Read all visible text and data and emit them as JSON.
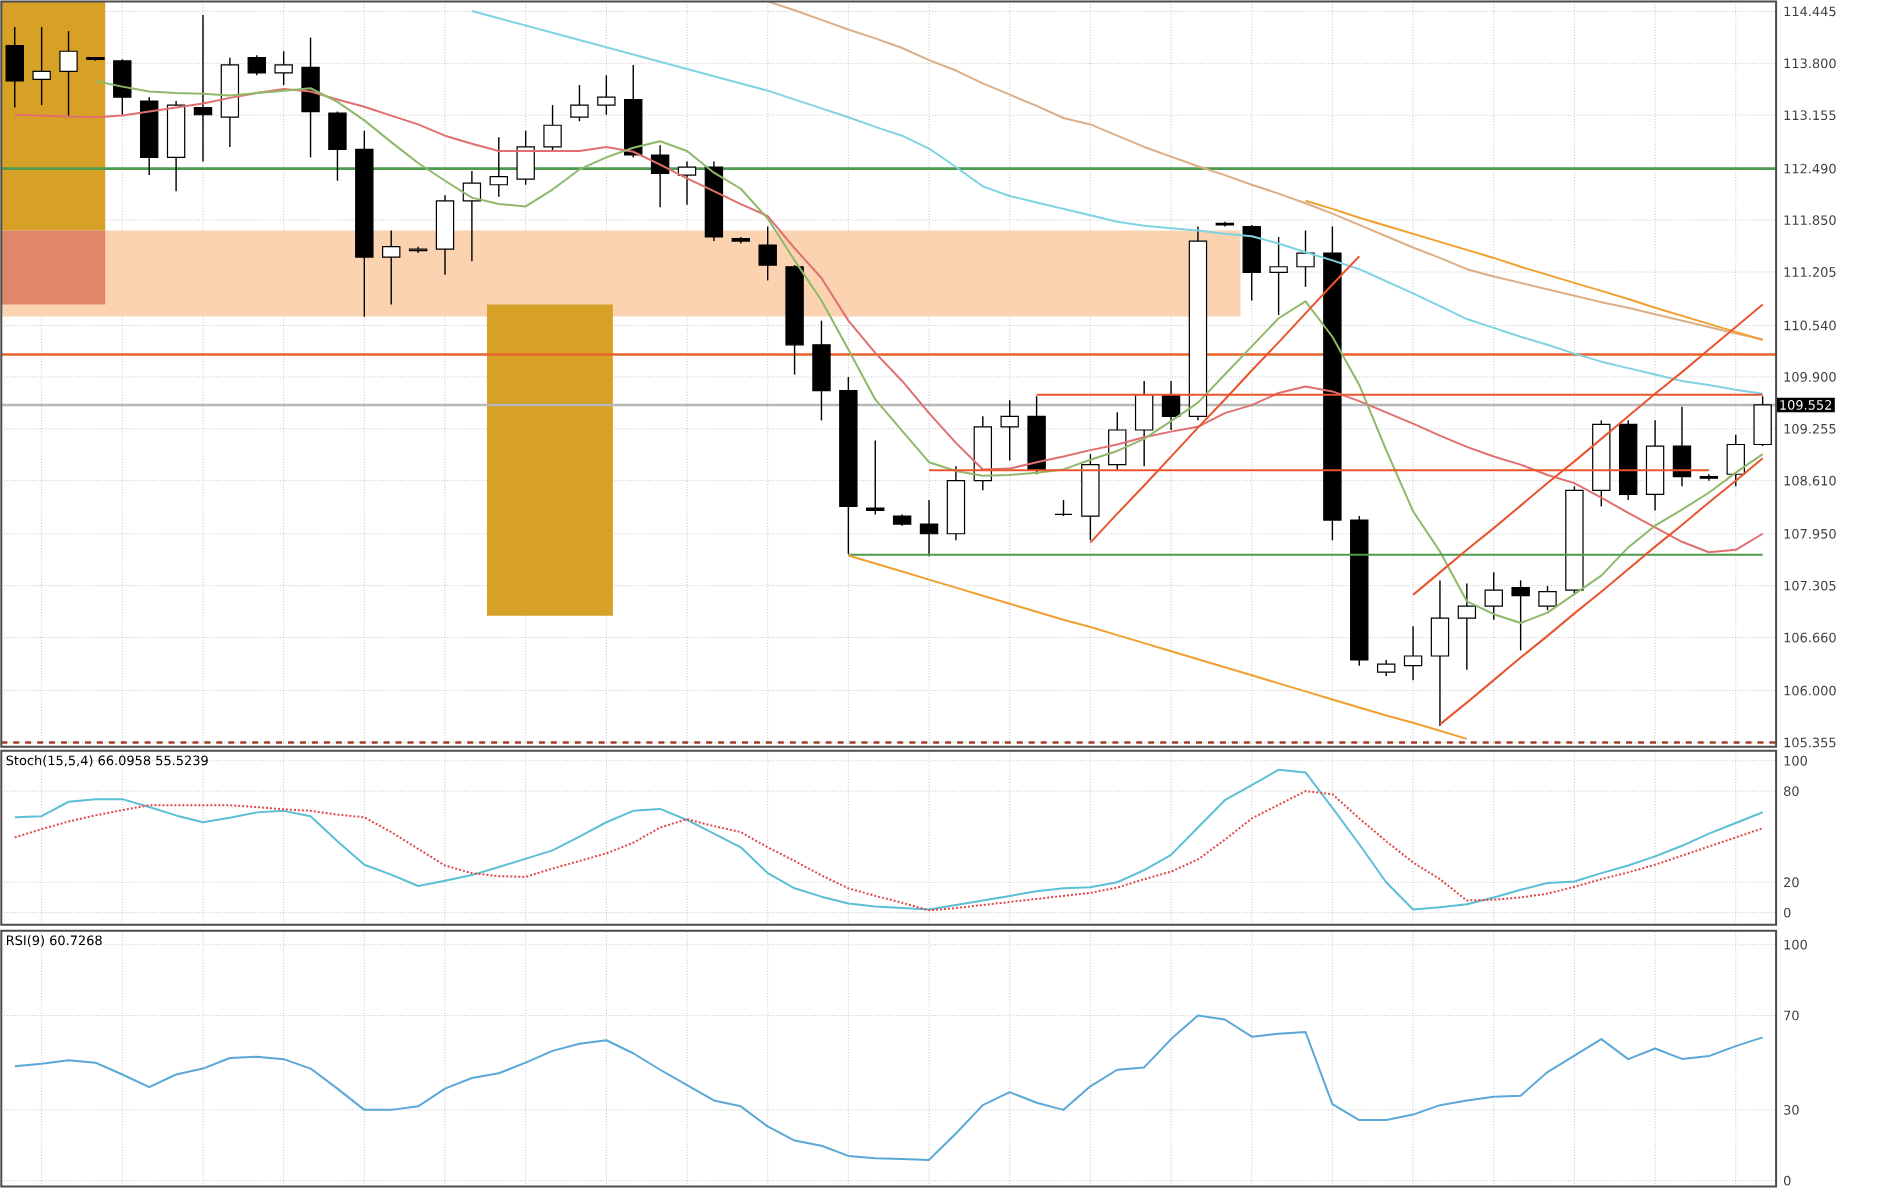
{
  "chart_data": [
    {
      "type": "candlestick",
      "categories": [
        null,
        null,
        null,
        null,
        null,
        null,
        null,
        null,
        null,
        null,
        null,
        null,
        null,
        null,
        null,
        null,
        null,
        null,
        null,
        null,
        null,
        null,
        null,
        null,
        null,
        null,
        null,
        null,
        null,
        null,
        null,
        null,
        null,
        null,
        null,
        null,
        null,
        null,
        null,
        null,
        null,
        null,
        null,
        null,
        null,
        null,
        null,
        null,
        null,
        null,
        null,
        null,
        null,
        null,
        null,
        null,
        null,
        null,
        null,
        null,
        null,
        null,
        null,
        null,
        null,
        null
      ],
      "ohlc": [
        [
          114.02,
          114.25,
          113.25,
          113.58
        ],
        [
          113.6,
          114.25,
          113.28,
          113.7
        ],
        [
          113.7,
          114.2,
          113.13,
          113.95
        ],
        [
          113.87,
          113.87,
          113.83,
          113.85
        ],
        [
          113.83,
          113.85,
          113.16,
          113.38
        ],
        [
          113.33,
          113.38,
          112.41,
          112.63
        ],
        [
          112.63,
          113.33,
          112.21,
          113.28
        ],
        [
          113.25,
          114.4,
          112.58,
          113.16
        ],
        [
          113.13,
          113.87,
          112.76,
          113.78
        ],
        [
          113.87,
          113.9,
          113.65,
          113.68
        ],
        [
          113.68,
          113.95,
          113.53,
          113.78
        ],
        [
          113.75,
          114.12,
          112.63,
          113.2
        ],
        [
          113.18,
          113.2,
          112.34,
          112.73
        ],
        [
          112.73,
          112.96,
          110.65,
          111.39
        ],
        [
          111.39,
          111.72,
          110.8,
          111.52
        ],
        [
          111.47,
          111.52,
          111.44,
          111.49
        ],
        [
          111.49,
          112.16,
          111.17,
          112.09
        ],
        [
          112.09,
          112.46,
          111.34,
          112.31
        ],
        [
          112.29,
          112.88,
          112.14,
          112.39
        ],
        [
          112.36,
          112.96,
          112.29,
          112.76
        ],
        [
          112.76,
          113.28,
          112.71,
          113.03
        ],
        [
          113.13,
          113.53,
          113.08,
          113.28
        ],
        [
          113.28,
          113.65,
          113.16,
          113.38
        ],
        [
          113.35,
          113.78,
          112.63,
          112.66
        ],
        [
          112.66,
          112.78,
          112.01,
          112.43
        ],
        [
          112.41,
          112.58,
          112.04,
          112.51
        ],
        [
          112.51,
          112.58,
          111.59,
          111.64
        ],
        [
          111.62,
          111.64,
          111.56,
          111.59
        ],
        [
          111.54,
          111.77,
          111.1,
          111.29
        ],
        [
          111.27,
          111.29,
          109.93,
          110.3
        ],
        [
          110.3,
          110.6,
          109.36,
          109.73
        ],
        [
          109.73,
          109.9,
          107.7,
          108.29
        ],
        [
          108.27,
          109.11,
          108.19,
          108.24
        ],
        [
          108.17,
          108.19,
          108.05,
          108.07
        ],
        [
          108.07,
          108.37,
          107.67,
          107.95
        ],
        [
          107.95,
          108.79,
          107.87,
          108.61
        ],
        [
          108.61,
          109.41,
          108.49,
          109.28
        ],
        [
          109.28,
          109.61,
          108.86,
          109.41
        ],
        [
          109.41,
          109.66,
          108.69,
          108.74
        ],
        [
          108.19,
          108.37,
          108.17,
          108.19
        ],
        [
          108.17,
          108.94,
          107.87,
          108.81
        ],
        [
          108.81,
          109.46,
          108.74,
          109.24
        ],
        [
          109.24,
          109.85,
          108.79,
          109.68
        ],
        [
          109.68,
          109.85,
          109.24,
          109.41
        ],
        [
          109.41,
          111.77,
          109.36,
          111.59
        ],
        [
          111.81,
          111.83,
          111.77,
          111.79
        ],
        [
          111.77,
          111.79,
          110.85,
          111.2
        ],
        [
          111.2,
          111.64,
          110.67,
          111.27
        ],
        [
          111.27,
          111.72,
          111.02,
          111.44
        ],
        [
          111.44,
          111.77,
          107.87,
          108.12
        ],
        [
          108.12,
          108.17,
          106.31,
          106.38
        ],
        [
          106.23,
          106.38,
          106.18,
          106.33
        ],
        [
          106.31,
          106.8,
          106.13,
          106.43
        ],
        [
          106.43,
          107.37,
          105.56,
          106.9
        ],
        [
          106.9,
          107.33,
          106.26,
          107.05
        ],
        [
          107.05,
          107.47,
          106.88,
          107.25
        ],
        [
          107.28,
          107.37,
          106.5,
          107.18
        ],
        [
          107.05,
          107.3,
          107.0,
          107.23
        ],
        [
          107.25,
          108.54,
          107.2,
          108.49
        ],
        [
          108.49,
          109.36,
          108.29,
          109.31
        ],
        [
          109.31,
          109.36,
          108.37,
          108.44
        ],
        [
          108.44,
          109.36,
          108.24,
          109.04
        ],
        [
          109.04,
          109.53,
          108.54,
          108.66
        ],
        [
          108.66,
          108.69,
          108.61,
          108.64
        ],
        [
          108.69,
          109.18,
          108.54,
          109.06
        ],
        [
          109.06,
          109.66,
          109.04,
          109.552
        ]
      ],
      "bands": [
        {
          "axis": "y",
          "from": 110.65,
          "to": 111.72,
          "color": "#fbd3b0"
        },
        {
          "axis": "y",
          "from": 111.72,
          "to": 114.57,
          "color": "#d6a126"
        },
        {
          "axis": "y",
          "from": 110.8,
          "to": 111.72,
          "color": "#e0876a"
        },
        {
          "axis": "y",
          "from": 106.93,
          "to": 110.8,
          "color": "#d6a126"
        }
      ],
      "series": [
        {
          "type": "line",
          "color": "#e07070",
          "values": [
            113.16,
            113.15,
            113.14,
            113.13,
            113.15,
            113.2,
            113.25,
            113.3,
            113.37,
            113.43,
            113.48,
            113.45,
            113.35,
            113.26,
            113.15,
            113.04,
            112.9,
            112.8,
            112.71,
            112.71,
            112.71,
            112.71,
            112.76,
            112.7,
            112.54,
            112.37,
            112.21,
            112.05,
            111.9,
            111.5,
            111.13,
            110.6,
            110.2,
            109.85,
            109.45,
            109.08,
            108.75,
            108.76,
            108.84,
            108.91,
            108.99,
            109.06,
            109.15,
            109.22,
            109.28,
            109.45,
            109.55,
            109.7,
            109.78,
            109.72,
            109.6,
            109.46,
            109.32,
            109.17,
            109.03,
            108.91,
            108.81,
            108.68,
            108.58,
            108.4,
            108.21,
            108.03,
            107.85,
            107.72,
            107.75,
            107.95
          ]
        },
        {
          "type": "line",
          "color": "#8fb86a",
          "values": [
            null,
            null,
            null,
            113.58,
            113.51,
            113.45,
            113.43,
            113.42,
            113.4,
            113.43,
            113.46,
            113.49,
            113.32,
            113.09,
            112.82,
            112.56,
            112.34,
            112.13,
            112.05,
            112.02,
            112.23,
            112.48,
            112.63,
            112.75,
            112.83,
            112.71,
            112.44,
            112.24,
            111.87,
            111.35,
            110.85,
            110.24,
            109.62,
            109.23,
            108.84,
            108.73,
            108.67,
            108.68,
            108.71,
            108.75,
            108.87,
            108.98,
            109.13,
            109.35,
            109.58,
            109.93,
            110.28,
            110.63,
            110.84,
            110.4,
            109.8,
            108.99,
            108.23,
            107.73,
            107.11,
            106.95,
            106.84,
            106.97,
            107.2,
            107.43,
            107.78,
            108.05,
            108.25,
            108.46,
            108.71,
            108.94
          ]
        },
        {
          "type": "line",
          "color": "#7fd3e3",
          "values": [
            null,
            null,
            null,
            null,
            null,
            null,
            null,
            null,
            null,
            null,
            null,
            null,
            null,
            null,
            null,
            null,
            null,
            114.45,
            114.36,
            114.27,
            114.18,
            114.09,
            114.0,
            113.91,
            113.82,
            113.73,
            113.64,
            113.55,
            113.46,
            113.35,
            113.24,
            113.13,
            113.01,
            112.9,
            112.74,
            112.51,
            112.27,
            112.15,
            112.07,
            111.99,
            111.91,
            111.83,
            111.78,
            111.75,
            111.72,
            111.68,
            111.65,
            111.56,
            111.45,
            111.35,
            111.24,
            111.09,
            110.94,
            110.78,
            110.62,
            110.51,
            110.4,
            110.3,
            110.19,
            110.09,
            110.01,
            109.93,
            109.85,
            109.8,
            109.74,
            109.69
          ]
        },
        {
          "type": "line",
          "color": "#dcae86",
          "values": [
            null,
            null,
            null,
            null,
            null,
            null,
            null,
            null,
            null,
            null,
            null,
            null,
            null,
            null,
            null,
            null,
            null,
            null,
            null,
            null,
            null,
            null,
            null,
            null,
            null,
            null,
            null,
            null,
            114.57,
            114.46,
            114.34,
            114.22,
            114.11,
            113.99,
            113.84,
            113.71,
            113.55,
            113.41,
            113.27,
            113.12,
            113.04,
            112.9,
            112.76,
            112.64,
            112.52,
            112.41,
            112.29,
            112.18,
            112.06,
            111.93,
            111.79,
            111.65,
            111.51,
            111.38,
            111.24,
            111.15,
            111.07,
            110.99,
            110.91,
            110.83,
            110.76,
            110.68,
            110.6,
            110.52,
            110.44,
            110.37
          ]
        },
        {
          "type": "line",
          "color": "#4e9a4e",
          "values": [
            null,
            null,
            null,
            null,
            null,
            null,
            null,
            null,
            null,
            null,
            null,
            null,
            null,
            null,
            null,
            null,
            null,
            null,
            null,
            null,
            null,
            null,
            null,
            null,
            null,
            null,
            null,
            null,
            null,
            null,
            null,
            107.69,
            107.69,
            107.69,
            107.69,
            107.69,
            107.69,
            107.69,
            107.69,
            107.69,
            107.69,
            107.69,
            107.69,
            107.69,
            107.69,
            107.69,
            107.69,
            107.69,
            107.69,
            107.69,
            107.69,
            107.69,
            107.69,
            107.69,
            107.69,
            107.69,
            107.69,
            107.69,
            107.69,
            107.69,
            107.69,
            107.69,
            107.69,
            107.69,
            107.69,
            107.69
          ]
        },
        {
          "type": "line",
          "color": "#e8552e",
          "values": [
            null,
            null,
            null,
            null,
            null,
            null,
            null,
            null,
            null,
            null,
            null,
            null,
            null,
            null,
            null,
            null,
            null,
            null,
            null,
            null,
            null,
            null,
            null,
            null,
            null,
            null,
            null,
            null,
            null,
            null,
            null,
            null,
            null,
            null,
            null,
            null,
            null,
            null,
            109.68,
            109.68,
            109.68,
            109.68,
            109.68,
            109.68,
            109.68,
            109.68,
            109.68,
            109.68,
            109.68,
            109.68,
            109.68,
            109.68,
            109.68,
            109.68,
            109.68,
            109.68,
            109.68,
            109.68,
            109.68,
            109.68,
            109.68,
            109.68,
            109.68,
            109.68,
            109.68,
            109.68
          ]
        },
        {
          "type": "line",
          "color": "#e8552e",
          "values": [
            null,
            null,
            null,
            null,
            null,
            null,
            null,
            null,
            null,
            null,
            null,
            null,
            null,
            null,
            null,
            null,
            null,
            null,
            null,
            null,
            null,
            null,
            null,
            null,
            null,
            null,
            null,
            null,
            null,
            null,
            null,
            null,
            null,
            null,
            108.74,
            108.74,
            108.74,
            108.74,
            108.74,
            108.74,
            108.74,
            108.74,
            108.74,
            108.74,
            108.74,
            108.74,
            108.74,
            108.74,
            108.74,
            108.74,
            108.74,
            108.74,
            108.74,
            108.74,
            108.74,
            108.74,
            108.74,
            108.74,
            108.74,
            108.74,
            108.74,
            108.74,
            108.74,
            108.74,
            null,
            null
          ]
        },
        {
          "type": "line",
          "color": "#f0a030",
          "values": [
            null,
            null,
            null,
            null,
            null,
            null,
            null,
            null,
            null,
            null,
            null,
            null,
            null,
            null,
            null,
            null,
            null,
            null,
            null,
            null,
            null,
            null,
            null,
            null,
            null,
            null,
            null,
            null,
            null,
            null,
            null,
            107.68,
            107.58,
            107.48,
            107.38,
            107.28,
            107.18,
            107.08,
            106.98,
            106.88,
            106.79,
            106.69,
            106.59,
            106.49,
            106.39,
            106.29,
            106.19,
            106.09,
            105.99,
            105.89,
            105.79,
            105.69,
            105.6,
            105.5,
            105.4,
            null,
            null,
            null,
            null,
            null,
            null,
            null,
            null,
            null,
            null,
            null
          ]
        },
        {
          "type": "line",
          "color": "#f0a030",
          "values": [
            null,
            null,
            null,
            null,
            null,
            null,
            null,
            null,
            null,
            null,
            null,
            null,
            null,
            null,
            null,
            null,
            null,
            null,
            null,
            null,
            null,
            null,
            null,
            null,
            null,
            null,
            null,
            null,
            null,
            null,
            null,
            null,
            null,
            null,
            null,
            null,
            null,
            null,
            null,
            null,
            null,
            null,
            null,
            null,
            null,
            null,
            null,
            null,
            112.09,
            111.99,
            111.88,
            111.78,
            111.68,
            111.58,
            111.48,
            111.38,
            111.27,
            111.17,
            111.07,
            110.97,
            110.87,
            110.76,
            110.66,
            110.56,
            110.46,
            110.36
          ]
        },
        {
          "type": "line",
          "color": "#e8552e",
          "values": [
            null,
            null,
            null,
            null,
            null,
            null,
            null,
            null,
            null,
            null,
            null,
            null,
            null,
            null,
            null,
            null,
            null,
            null,
            null,
            null,
            null,
            null,
            null,
            null,
            null,
            null,
            null,
            null,
            null,
            null,
            null,
            null,
            null,
            null,
            null,
            null,
            null,
            null,
            null,
            null,
            107.84,
            108.2,
            108.55,
            108.91,
            109.27,
            109.62,
            109.98,
            110.33,
            110.69,
            111.05,
            111.4,
            null,
            null,
            null,
            null,
            null,
            null,
            null,
            null,
            null,
            null,
            null,
            null,
            null,
            null,
            null
          ]
        },
        {
          "type": "line",
          "color": "#e8552e",
          "values": [
            null,
            null,
            null,
            null,
            null,
            null,
            null,
            null,
            null,
            null,
            null,
            null,
            null,
            null,
            null,
            null,
            null,
            null,
            null,
            null,
            null,
            null,
            null,
            null,
            null,
            null,
            null,
            null,
            null,
            null,
            null,
            null,
            null,
            null,
            null,
            null,
            null,
            null,
            null,
            null,
            null,
            null,
            null,
            null,
            null,
            null,
            null,
            null,
            null,
            null,
            null,
            null,
            107.19,
            107.47,
            107.75,
            108.02,
            108.3,
            108.58,
            108.85,
            109.13,
            109.41,
            109.69,
            109.96,
            110.24,
            110.52,
            110.8
          ]
        },
        {
          "type": "line",
          "color": "#e8552e",
          "values": [
            null,
            null,
            null,
            null,
            null,
            null,
            null,
            null,
            null,
            null,
            null,
            null,
            null,
            null,
            null,
            null,
            null,
            null,
            null,
            null,
            null,
            null,
            null,
            null,
            null,
            null,
            null,
            null,
            null,
            null,
            null,
            null,
            null,
            null,
            null,
            null,
            null,
            null,
            null,
            null,
            null,
            null,
            null,
            null,
            null,
            null,
            null,
            null,
            null,
            null,
            null,
            null,
            null,
            105.58,
            105.85,
            106.13,
            106.41,
            106.68,
            106.96,
            107.23,
            107.51,
            107.79,
            108.06,
            108.34,
            108.61,
            108.89
          ]
        }
      ],
      "ref_lines": [
        {
          "axis": "y",
          "value": 112.49,
          "color": "#4e9a4e"
        },
        {
          "axis": "y",
          "value": 110.18,
          "color": "#e8632a"
        },
        {
          "axis": "y",
          "value": 109.552,
          "color": "#b8b8b8",
          "label": "109.552"
        },
        {
          "axis": "y",
          "value": 105.355,
          "color": "#a0402a",
          "line_style": "dashed"
        }
      ],
      "ylim": [
        105.3,
        114.57
      ],
      "yticks": [
        {
          "value": 105.355,
          "label": "105.355"
        },
        {
          "value": 106.0,
          "label": "106.000"
        },
        {
          "value": 106.66,
          "label": "106.660"
        },
        {
          "value": 107.305,
          "label": "107.305"
        },
        {
          "value": 107.95,
          "label": "107.950"
        },
        {
          "value": 108.61,
          "label": "108.610"
        },
        {
          "value": 109.255,
          "label": "109.255"
        },
        {
          "value": 109.9,
          "label": "109.900"
        },
        {
          "value": 110.54,
          "label": "110.540"
        },
        {
          "value": 111.205,
          "label": "111.205"
        },
        {
          "value": 111.85,
          "label": "111.850"
        },
        {
          "value": 112.49,
          "label": "112.490"
        },
        {
          "value": 113.155,
          "label": "113.155"
        },
        {
          "value": 113.8,
          "label": "113.800"
        },
        {
          "value": 114.445,
          "label": "114.445"
        }
      ],
      "grid": true,
      "tick_labels": "y"
    },
    {
      "type": "line",
      "title": "Stoch(15,5,4) 66.0958 55.5239",
      "categories": [
        null,
        null,
        null,
        null,
        null,
        null,
        null,
        null,
        null,
        null,
        null,
        null,
        null,
        null,
        null,
        null,
        null,
        null,
        null,
        null,
        null,
        null,
        null,
        null,
        null,
        null,
        null,
        null,
        null,
        null,
        null,
        null,
        null,
        null,
        null,
        null,
        null,
        null,
        null,
        null,
        null,
        null,
        null,
        null,
        null,
        null,
        null,
        null,
        null,
        null,
        null,
        null,
        null,
        null,
        null,
        null,
        null,
        null,
        null,
        null,
        null,
        null,
        null,
        null,
        null,
        null
      ],
      "series": [
        {
          "color": "#5bbfd6",
          "values": [
            62.8,
            63.5,
            73,
            74.7,
            74.7,
            69.5,
            64,
            59.5,
            62.5,
            66,
            67,
            63.5,
            47,
            31.5,
            25,
            17.5,
            21,
            24.7,
            30,
            35.5,
            41,
            50,
            59.5,
            67,
            68.3,
            61,
            52,
            43,
            26,
            16,
            10.5,
            6,
            4,
            3,
            2,
            5,
            8,
            11,
            14,
            16,
            16.7,
            20,
            28,
            38,
            56,
            74,
            84,
            94,
            92.3,
            69,
            45,
            20,
            2,
            3.5,
            5.5,
            10,
            15,
            19.5,
            20.5,
            26,
            31,
            37,
            44,
            52,
            59,
            66.1
          ]
        },
        {
          "color": "#e04848",
          "line_style": "dotted",
          "values": [
            49.5,
            55,
            60,
            64,
            67.5,
            70.7,
            70.7,
            70.7,
            70.7,
            69.5,
            68,
            67,
            64.5,
            62.8,
            53,
            42,
            31,
            26,
            24,
            23.5,
            29,
            34,
            39,
            46,
            56,
            61.5,
            57,
            53,
            43,
            34,
            24.5,
            16,
            11,
            6.5,
            1.5,
            3,
            5,
            7,
            9,
            11,
            13,
            16.5,
            22,
            27,
            35,
            48,
            62,
            71,
            80,
            78,
            62,
            47,
            33,
            22,
            8,
            8.5,
            10,
            12.5,
            17,
            22,
            26.5,
            31.5,
            37.5,
            43.5,
            49.5,
            55.5
          ]
        }
      ],
      "ylim": [
        -8,
        106.5
      ],
      "yticks": [
        {
          "value": 0,
          "label": "0"
        },
        {
          "value": 20,
          "label": "20"
        },
        {
          "value": 80,
          "label": "80"
        },
        {
          "value": 100,
          "label": "100"
        }
      ],
      "grid": true,
      "tick_labels": "y"
    },
    {
      "type": "line",
      "title": "RSI(9) 60.7268",
      "categories": [
        null,
        null,
        null,
        null,
        null,
        null,
        null,
        null,
        null,
        null,
        null,
        null,
        null,
        null,
        null,
        null,
        null,
        null,
        null,
        null,
        null,
        null,
        null,
        null,
        null,
        null,
        null,
        null,
        null,
        null,
        null,
        null,
        null,
        null,
        null,
        null,
        null,
        null,
        null,
        null,
        null,
        null,
        null,
        null,
        null,
        null,
        null,
        null,
        null,
        null,
        null,
        null,
        null,
        null,
        null,
        null,
        null,
        null,
        null,
        null,
        null,
        null,
        null,
        null,
        null,
        null
      ],
      "series": [
        {
          "color": "#5ba8d8",
          "values": [
            48.5,
            49.5,
            51,
            50,
            45,
            39.6,
            45,
            47.5,
            52,
            52.5,
            51.5,
            47.5,
            39,
            30,
            30,
            31.5,
            39,
            43.5,
            45.5,
            50,
            55,
            58,
            59.5,
            54,
            47,
            40.5,
            34,
            31.5,
            23,
            17,
            14.8,
            10.5,
            9.5,
            9.2,
            8.8,
            20,
            32,
            37.5,
            33,
            30,
            40,
            47,
            48,
            60,
            70,
            68.3,
            61,
            62.3,
            63,
            32.4,
            25.7,
            25.7,
            28,
            32,
            34,
            35.6,
            36,
            46,
            53,
            60,
            51.5,
            56,
            51.6,
            52.8,
            57,
            60.7
          ]
        }
      ],
      "ylim": [
        -2.5,
        105.9
      ],
      "yticks": [
        {
          "value": 0,
          "label": "0"
        },
        {
          "value": 30,
          "label": "30"
        },
        {
          "value": 70,
          "label": "70"
        },
        {
          "value": 100,
          "label": "100"
        }
      ],
      "grid": true,
      "tick_labels": "y"
    }
  ]
}
